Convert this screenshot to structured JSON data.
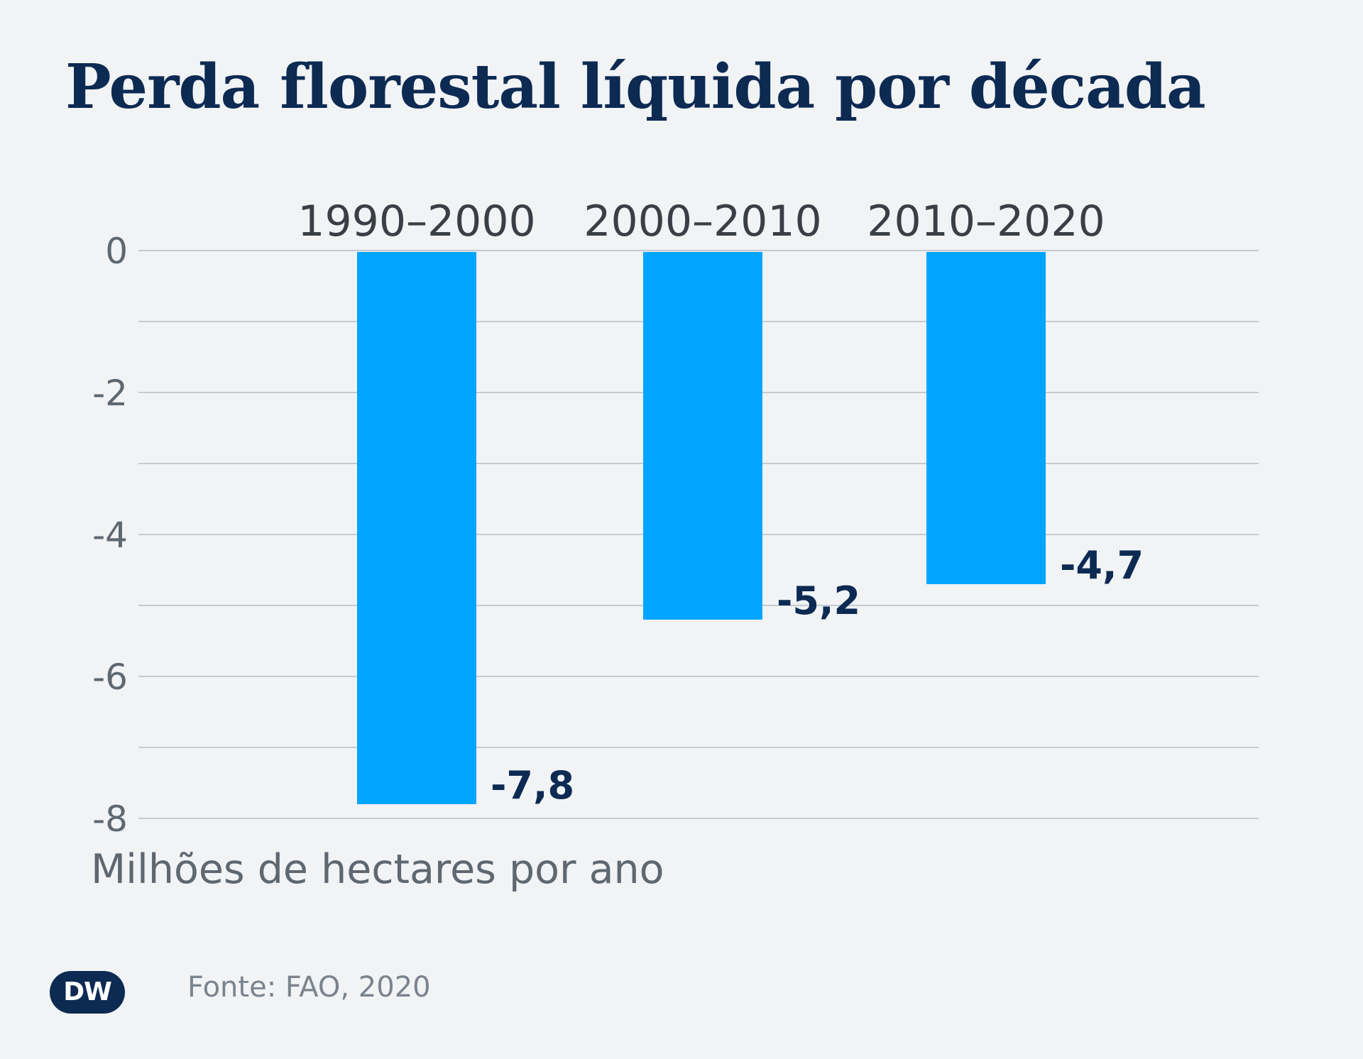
{
  "header": {
    "title": "Perda florestal líquida por década"
  },
  "chart_data": {
    "type": "bar",
    "categories": [
      "1990–2000",
      "2000–2010",
      "2010–2020"
    ],
    "values": [
      -7.8,
      -5.2,
      -4.7
    ],
    "value_labels": [
      "-7,8",
      "-5,2",
      "-4,7"
    ],
    "title": "Perda florestal líquida por década",
    "ylabel": "Milhões de hectares por ano",
    "ylim": [
      -8,
      0
    ],
    "yticks": [
      0,
      -2,
      -4,
      -6,
      -8
    ],
    "ytick_labels": [
      "0",
      "-2",
      "-4",
      "-6",
      "-8"
    ],
    "grid_step": 1,
    "grid": true,
    "legend": "none",
    "colors": {
      "bar": "#00a5ff",
      "value_label": "#0c2a52"
    }
  },
  "footer": {
    "source": "Fonte: FAO, 2020",
    "logo_text": "DW"
  }
}
